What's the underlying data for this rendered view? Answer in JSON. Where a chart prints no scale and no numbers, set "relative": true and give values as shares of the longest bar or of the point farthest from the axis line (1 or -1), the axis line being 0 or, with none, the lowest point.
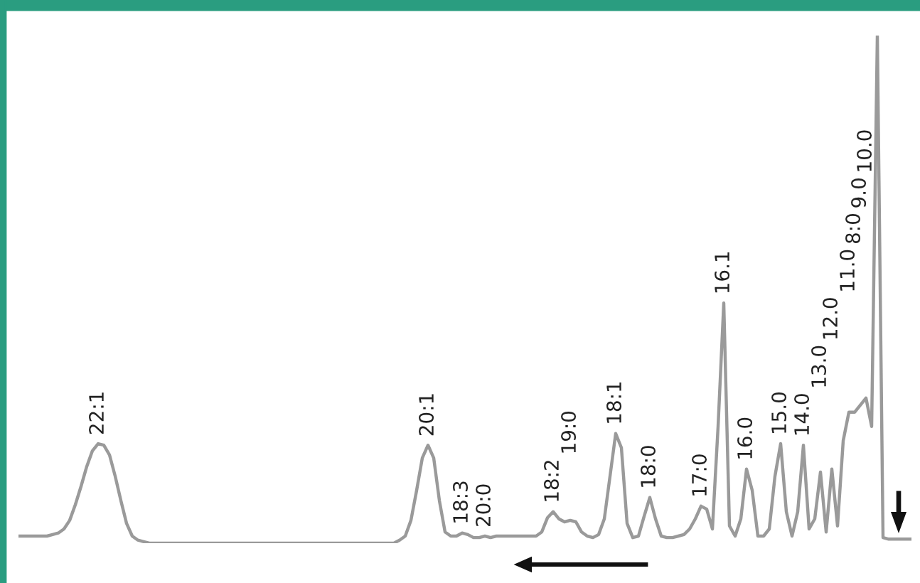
{
  "chart_data": {
    "type": "line",
    "relative": true,
    "legend": false,
    "marker": "none",
    "line_style": "solid",
    "categories": [
      null,
      null,
      null,
      null,
      null,
      null,
      null,
      null,
      null,
      null,
      null,
      null,
      null,
      null,
      "22:1",
      null,
      null,
      null,
      null,
      null,
      null,
      null,
      null,
      null,
      null,
      null,
      null,
      null,
      null,
      null,
      null,
      null,
      null,
      null,
      null,
      null,
      null,
      null,
      null,
      null,
      null,
      null,
      null,
      null,
      null,
      null,
      null,
      null,
      null,
      null,
      null,
      null,
      null,
      null,
      null,
      null,
      null,
      null,
      null,
      null,
      null,
      null,
      null,
      null,
      null,
      null,
      null,
      null,
      null,
      null,
      null,
      null,
      "20:1",
      null,
      null,
      null,
      null,
      null,
      "18:3",
      null,
      null,
      null,
      "20:0",
      null,
      null,
      null,
      null,
      null,
      null,
      null,
      null,
      null,
      null,
      null,
      "18:2",
      null,
      null,
      "19:0",
      null,
      null,
      null,
      null,
      null,
      null,
      null,
      "18:1",
      null,
      null,
      null,
      null,
      null,
      "18:0",
      null,
      null,
      null,
      null,
      null,
      null,
      null,
      null,
      "17:0",
      null,
      null,
      null,
      "16.1",
      null,
      null,
      null,
      "16.0",
      null,
      null,
      null,
      null,
      null,
      "15.0",
      null,
      null,
      null,
      "14.0",
      null,
      null,
      "13.0",
      null,
      "12.0",
      null,
      null,
      "11.0",
      "8:0",
      "9.0",
      "10.0",
      null,
      null,
      null,
      null,
      null,
      null,
      null,
      null
    ],
    "series": [
      {
        "color": "#9a9a9a",
        "values": [
          0.014,
          0.014,
          0.014,
          0.014,
          0.014,
          0.014,
          0.017,
          0.02,
          0.028,
          0.045,
          0.076,
          0.112,
          0.151,
          0.182,
          0.196,
          0.193,
          0.174,
          0.132,
          0.084,
          0.039,
          0.014,
          0.006,
          0.003,
          0,
          0,
          0,
          0,
          0,
          0,
          0,
          0,
          0,
          0,
          0,
          0,
          0,
          0,
          0,
          0,
          0,
          0,
          0,
          0,
          0,
          0,
          0,
          0,
          0,
          0,
          0,
          0,
          0,
          0,
          0,
          0,
          0,
          0,
          0,
          0,
          0,
          0,
          0,
          0,
          0,
          0,
          0,
          0,
          0.006,
          0.014,
          0.045,
          0.104,
          0.168,
          0.193,
          0.168,
          0.084,
          0.022,
          0.014,
          0.014,
          0.02,
          0.017,
          0.011,
          0.011,
          0.014,
          0.011,
          0.014,
          0.014,
          0.014,
          0.014,
          0.014,
          0.014,
          0.014,
          0.014,
          0.022,
          0.05,
          0.062,
          0.048,
          0.042,
          0.045,
          0.042,
          0.022,
          0.014,
          0.011,
          0.017,
          0.048,
          0.132,
          0.216,
          0.188,
          0.039,
          0.011,
          0.014,
          0.053,
          0.09,
          0.048,
          0.014,
          0.011,
          0.011,
          0.014,
          0.017,
          0.028,
          0.048,
          0.073,
          0.067,
          0.028,
          0.23,
          0.473,
          0.034,
          0.014,
          0.048,
          0.146,
          0.104,
          0.014,
          0.014,
          0.028,
          0.132,
          0.196,
          0.062,
          0.014,
          0.062,
          0.193,
          0.028,
          0.048,
          0.14,
          0.022,
          0.146,
          0.034,
          0.202,
          0.258,
          0.258,
          0.272,
          0.286,
          0.23,
          1,
          0.011,
          0.008,
          0.008,
          0.008,
          0.008,
          0.008
        ]
      }
    ]
  }
}
